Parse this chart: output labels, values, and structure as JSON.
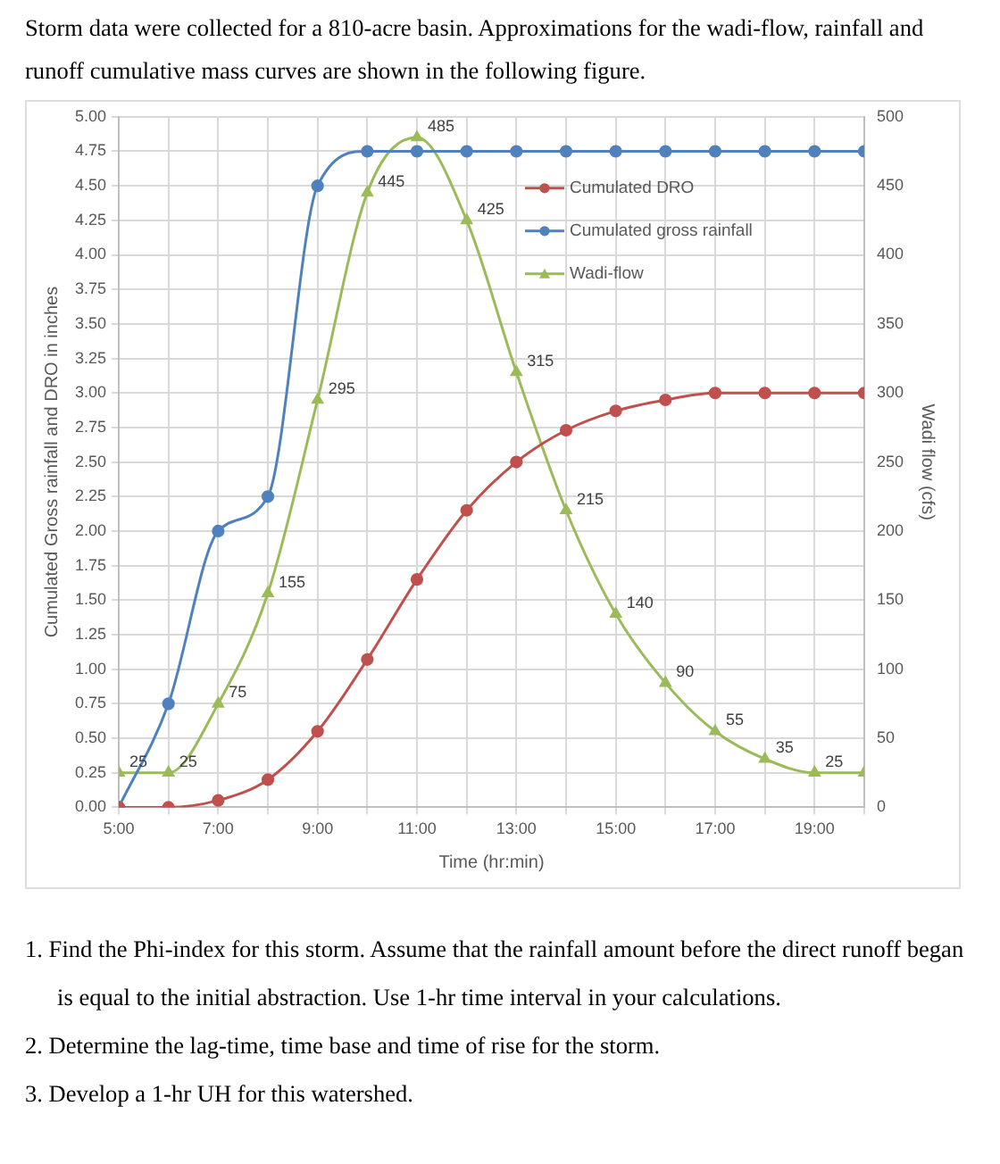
{
  "chart_data": {
    "type": "line",
    "title": "Storm data were collected for a 810-acre basin. Approximations for the wadi-flow, rainfall and runoff cumulative mass curves are shown in the following figure.",
    "xlabel": "Time (hr:min)",
    "ylabel": "Cumulated Gross rainfall and DRO in inches",
    "y2label": "Wadi flow (cfs)",
    "x": [
      5,
      6,
      7,
      8,
      9,
      10,
      11,
      12,
      13,
      14,
      15,
      16,
      17,
      18,
      19,
      20
    ],
    "series": [
      {
        "name": "Cumulated DRO",
        "color": "#c0504d",
        "marker": "circle",
        "values": [
          0,
          0,
          0.05,
          0.2,
          0.55,
          1.07,
          1.65,
          2.15,
          2.5,
          2.73,
          2.87,
          2.95,
          3.0,
          3.0,
          3.0,
          3.0
        ]
      },
      {
        "name": "Cumulated gross rainfall",
        "color": "#4f81bd",
        "marker": "circle",
        "values": [
          0,
          0.75,
          2.0,
          2.25,
          4.5,
          4.75,
          4.75,
          4.75,
          4.75,
          4.75,
          4.75,
          4.75,
          4.75,
          4.75,
          4.75,
          4.75
        ]
      },
      {
        "name": "Wadi-flow",
        "color": "#9bbb59",
        "marker": "triangle",
        "axis": "y2",
        "values": [
          25,
          25,
          75,
          155,
          295,
          445,
          485,
          425,
          315,
          215,
          140,
          90,
          55,
          35,
          25,
          25
        ],
        "value_labels": [
          "25",
          "25",
          "75",
          "155",
          "295",
          "445",
          "485",
          "425",
          "315",
          "215",
          "140",
          "90",
          "55",
          "35",
          "25",
          null
        ]
      }
    ],
    "xlim": [
      5,
      20
    ],
    "xticks": [
      {
        "value": 5,
        "label": "5:00"
      },
      {
        "value": 6,
        "label": null
      },
      {
        "value": 7,
        "label": "7:00"
      },
      {
        "value": 8,
        "label": null
      },
      {
        "value": 9,
        "label": "9:00"
      },
      {
        "value": 10,
        "label": null
      },
      {
        "value": 11,
        "label": "11:00"
      },
      {
        "value": 12,
        "label": null
      },
      {
        "value": 13,
        "label": "13:00"
      },
      {
        "value": 14,
        "label": null
      },
      {
        "value": 15,
        "label": "15:00"
      },
      {
        "value": 16,
        "label": null
      },
      {
        "value": 17,
        "label": "17:00"
      },
      {
        "value": 18,
        "label": null
      },
      {
        "value": 19,
        "label": "19:00"
      },
      {
        "value": 20,
        "label": null
      }
    ],
    "ylim": [
      0,
      5
    ],
    "yticks": [
      {
        "value": 0,
        "label": "0.00"
      },
      {
        "value": 0.25,
        "label": "0.25"
      },
      {
        "value": 0.5,
        "label": "0.50"
      },
      {
        "value": 0.75,
        "label": "0.75"
      },
      {
        "value": 1,
        "label": "1.00"
      },
      {
        "value": 1.25,
        "label": "1.25"
      },
      {
        "value": 1.5,
        "label": "1.50"
      },
      {
        "value": 1.75,
        "label": "1.75"
      },
      {
        "value": 2,
        "label": "2.00"
      },
      {
        "value": 2.25,
        "label": "2.25"
      },
      {
        "value": 2.5,
        "label": "2.50"
      },
      {
        "value": 2.75,
        "label": "2.75"
      },
      {
        "value": 3,
        "label": "3.00"
      },
      {
        "value": 3.25,
        "label": "3.25"
      },
      {
        "value": 3.5,
        "label": "3.50"
      },
      {
        "value": 3.75,
        "label": "3.75"
      },
      {
        "value": 4,
        "label": "4.00"
      },
      {
        "value": 4.25,
        "label": "4.25"
      },
      {
        "value": 4.5,
        "label": "4.50"
      },
      {
        "value": 4.75,
        "label": "4.75"
      },
      {
        "value": 5,
        "label": "5.00"
      }
    ],
    "y2lim": [
      0,
      500
    ],
    "y2ticks": [
      0,
      50,
      100,
      150,
      200,
      250,
      300,
      350,
      400,
      450,
      500
    ],
    "grid": true,
    "legend": "top right",
    "annotations": [
      "1. Find the Phi-index for this storm. Assume that the rainfall amount before the direct runoff began is equal to the initial abstraction. Use 1-hr time interval in your calculations.",
      "2. Determine the lag-time, time base and time of rise for the storm.",
      "3. Develop a 1-hr UH for this watershed."
    ]
  }
}
